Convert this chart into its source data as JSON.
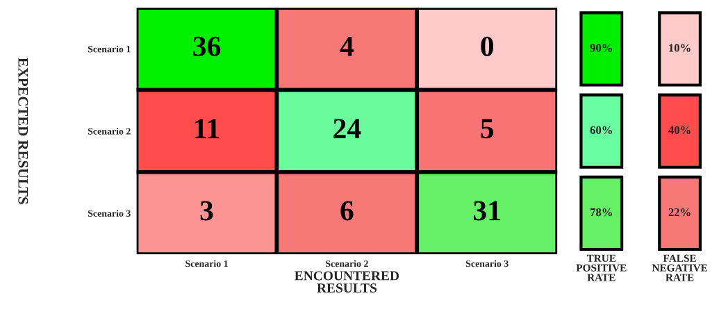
{
  "chart_data": [
    {
      "type": "heatmap",
      "ylabel": "EXPECTED RESULTS",
      "xlabel": "ENCOUNTERED\nRESULTS",
      "categories": [
        "Scenario 1",
        "Scenario 2",
        "Scenario 3"
      ],
      "y_categories": [
        "Scenario 1",
        "Scenario 2",
        "Scenario 3"
      ],
      "cells": [
        [
          36,
          4,
          0
        ],
        [
          11,
          24,
          5
        ],
        [
          3,
          6,
          31
        ]
      ],
      "colors": [
        [
          "#00f000",
          "#f87878",
          "#ffcaca"
        ],
        [
          "#ff4c4c",
          "#6afc9c",
          "#f87474"
        ],
        [
          "#fc9494",
          "#f87878",
          "#66f066"
        ]
      ],
      "data_labels": true
    },
    {
      "type": "heatmap",
      "categories": [
        "TRUE\nPOSITIVE\nRATE",
        "FALSE\nNEGATIVE\nRATE"
      ],
      "y_categories": [
        null,
        null,
        null
      ],
      "cells": [
        [
          90,
          10
        ],
        [
          60,
          40
        ],
        [
          78,
          22
        ]
      ],
      "cell_labels": [
        [
          "90%",
          "10%"
        ],
        [
          "60%",
          "40%"
        ],
        [
          "78%",
          "22%"
        ]
      ],
      "colors": [
        [
          "#00ee00",
          "#ffcaca"
        ],
        [
          "#6afca0",
          "#ff4c4c"
        ],
        [
          "#66f066",
          "#f87878"
        ]
      ]
    }
  ]
}
